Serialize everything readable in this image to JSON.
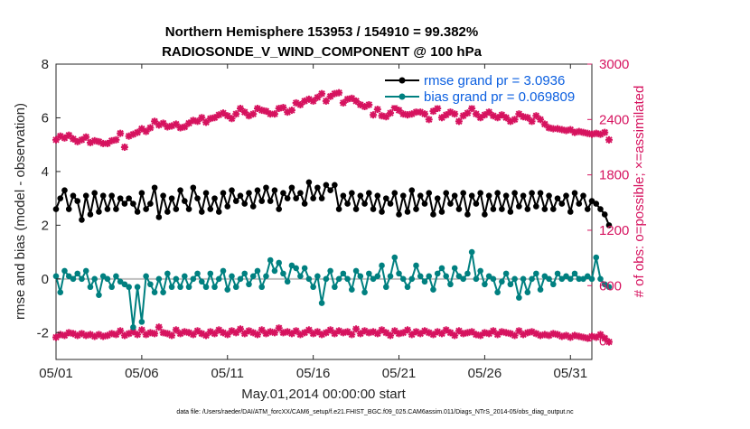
{
  "chart_data": {
    "type": "line",
    "title_lines": [
      "Northern Hemisphere 153953 / 154910 = 99.382%",
      "RADIOSONDE_V_WIND_COMPONENT @ 100 hPa"
    ],
    "xlabel": "May.01,2014 00:00:00 start",
    "ylabel_left": "rmse and bias (model - observation)",
    "ylabel_right": "# of obs: o=possible; ×=assimilated",
    "footer": "data file: /Users/raeder/DAI/ATM_forcXX/CAM6_setup/f.e21.FHIST_BGC.f09_025.CAM6assim.011/Diags_NTrS_2014-05/obs_diag_output.nc",
    "x_range": [
      0,
      31.25
    ],
    "x_ticks": [
      0,
      5,
      10,
      15,
      20,
      25,
      30
    ],
    "x_tick_labels": [
      "05/01",
      "05/06",
      "05/11",
      "05/16",
      "05/21",
      "05/26",
      "05/31"
    ],
    "y_left_range": [
      -3,
      8
    ],
    "y_left_ticks": [
      -2,
      0,
      2,
      4,
      6,
      8
    ],
    "y_left_tick_labels": [
      "-2",
      "0",
      "2",
      "4",
      "6",
      "8"
    ],
    "y_right_range": [
      -200,
      3000
    ],
    "y_right_ticks": [
      0,
      600,
      1200,
      1800,
      2400,
      3000
    ],
    "y_right_tick_labels": [
      "0",
      "600",
      "1200",
      "1800",
      "2400",
      "3000"
    ],
    "zero_line": 0,
    "legend": {
      "position": "top-right",
      "entries": [
        "rmse grand pr = 3.0936",
        "bias grand pr = 0.069809"
      ]
    },
    "colors": {
      "rmse": "#000000",
      "bias": "#008080",
      "obs": "#d6135f",
      "zero_line": "#bfbfbf",
      "legend_text": "#0b5fe0"
    },
    "x_step": 0.25,
    "series": [
      {
        "name": "rmse",
        "axis": "left",
        "values": [
          2.6,
          3.0,
          3.3,
          2.6,
          3.1,
          2.9,
          2.2,
          3.1,
          2.4,
          3.2,
          2.5,
          3.1,
          2.6,
          3.1,
          2.6,
          3.0,
          2.8,
          3.0,
          2.8,
          2.5,
          3.2,
          2.6,
          2.8,
          3.4,
          2.3,
          3.1,
          2.5,
          3.0,
          2.6,
          3.3,
          2.9,
          2.6,
          3.4,
          3.0,
          2.5,
          3.2,
          2.6,
          3.0,
          2.5,
          3.2,
          2.7,
          3.3,
          2.9,
          3.1,
          2.8,
          3.2,
          2.7,
          3.3,
          2.9,
          3.4,
          2.9,
          3.3,
          2.6,
          3.2,
          3.0,
          3.4,
          3.0,
          3.2,
          2.8,
          3.6,
          3.0,
          3.4,
          3.0,
          3.5,
          3.3,
          3.5,
          2.6,
          3.1,
          2.8,
          3.2,
          2.6,
          3.1,
          2.8,
          3.2,
          2.6,
          3.1,
          2.5,
          3.0,
          2.8,
          3.2,
          2.4,
          3.1,
          2.5,
          3.3,
          2.6,
          3.1,
          2.8,
          3.2,
          2.4,
          3.0,
          2.5,
          3.2,
          2.8,
          3.1,
          2.6,
          3.2,
          2.4,
          3.1,
          2.8,
          3.2,
          2.4,
          3.1,
          2.6,
          3.2,
          2.6,
          3.1,
          2.5,
          3.2,
          2.7,
          3.1,
          2.6,
          3.2,
          2.7,
          3.2,
          2.6,
          3.1,
          2.6,
          3.0,
          2.8,
          3.1,
          2.5,
          3.2,
          2.8,
          3.1,
          2.6,
          2.9,
          2.8,
          2.6,
          2.4,
          2.0
        ]
      },
      {
        "name": "bias",
        "axis": "left",
        "values": [
          0.1,
          -0.5,
          0.3,
          0.1,
          0.0,
          0.2,
          0.0,
          0.3,
          -0.3,
          0.0,
          -0.6,
          0.1,
          0.0,
          -0.3,
          0.1,
          -0.1,
          -0.2,
          -0.3,
          -1.8,
          -0.3,
          -1.6,
          0.1,
          -0.2,
          -0.5,
          0.0,
          -0.5,
          0.2,
          -0.3,
          0.0,
          -0.3,
          0.1,
          -0.3,
          0.0,
          0.2,
          -0.1,
          -0.3,
          0.2,
          -0.3,
          0.0,
          0.3,
          -0.4,
          0.1,
          -0.3,
          0.0,
          0.2,
          -0.2,
          0.1,
          0.3,
          -0.3,
          0.1,
          0.7,
          0.3,
          0.6,
          0.2,
          -0.1,
          0.5,
          0.4,
          0.1,
          0.4,
          0.0,
          -0.3,
          0.1,
          -0.9,
          0.0,
          0.3,
          -0.3,
          0.0,
          0.2,
          0.0,
          -0.4,
          0.3,
          0.1,
          -0.5,
          0.2,
          0.0,
          0.1,
          0.5,
          -0.3,
          0.1,
          0.8,
          0.2,
          0.0,
          -0.3,
          0.0,
          0.5,
          0.1,
          -0.1,
          0.1,
          -0.4,
          0.2,
          0.4,
          0.1,
          -0.2,
          0.4,
          0.1,
          0.0,
          0.2,
          1.0,
          0.0,
          0.3,
          -0.2,
          0.1,
          0.0,
          -0.5,
          -0.1,
          0.2,
          -0.2,
          0.0,
          -0.7,
          0.0,
          -0.5,
          0.0,
          0.2,
          -0.4,
          0.1,
          0.0,
          -0.2,
          0.2,
          0.0,
          0.1,
          0.0,
          0.2,
          0.0,
          0.0,
          0.1,
          0.0,
          0.8,
          0.0,
          -0.2,
          -0.3
        ]
      },
      {
        "name": "obs_assimilated",
        "axis": "right",
        "values": [
          2180,
          2220,
          2200,
          2230,
          2190,
          2160,
          2180,
          2210,
          2150,
          2170,
          2160,
          2140,
          2140,
          2170,
          2180,
          2250,
          2100,
          2220,
          2240,
          2260,
          2300,
          2270,
          2310,
          2380,
          2340,
          2360,
          2320,
          2330,
          2350,
          2310,
          2320,
          2360,
          2390,
          2380,
          2420,
          2370,
          2410,
          2420,
          2450,
          2470,
          2440,
          2410,
          2460,
          2520,
          2480,
          2440,
          2460,
          2520,
          2500,
          2490,
          2460,
          2460,
          2520,
          2530,
          2480,
          2500,
          2580,
          2560,
          2600,
          2620,
          2600,
          2640,
          2680,
          2600,
          2650,
          2680,
          2690,
          2580,
          2620,
          2630,
          2600,
          2560,
          2540,
          2560,
          2450,
          2510,
          2440,
          2430,
          2470,
          2530,
          2500,
          2460,
          2450,
          2460,
          2480,
          2480,
          2460,
          2400,
          2490,
          2520,
          2420,
          2450,
          2480,
          2460,
          2380,
          2440,
          2470,
          2520,
          2460,
          2420,
          2450,
          2480,
          2440,
          2420,
          2450,
          2420,
          2380,
          2400,
          2460,
          2430,
          2420,
          2380,
          2440,
          2400,
          2350,
          2310,
          2300,
          2300,
          2290,
          2280,
          2290,
          2260,
          2270,
          2260,
          2250,
          2240,
          2250,
          2240,
          2260,
          2180
        ]
      },
      {
        "name": "obs_possible",
        "axis": "right",
        "values": [
          40,
          70,
          60,
          90,
          80,
          60,
          80,
          60,
          70,
          50,
          70,
          50,
          60,
          80,
          70,
          110,
          60,
          80,
          100,
          70,
          120,
          70,
          90,
          80,
          150,
          90,
          80,
          60,
          120,
          80,
          100,
          90,
          70,
          110,
          80,
          60,
          100,
          80,
          120,
          90,
          70,
          110,
          90,
          130,
          80,
          110,
          90,
          70,
          120,
          80,
          100,
          90,
          140,
          90,
          100,
          80,
          110,
          70,
          90,
          120,
          80,
          100,
          70,
          90,
          120,
          80,
          110,
          90,
          100,
          70,
          130,
          80,
          110,
          90,
          100,
          80,
          120,
          90,
          60,
          110,
          80,
          90,
          120,
          70,
          100,
          80,
          110,
          90,
          70,
          100,
          80,
          120,
          90,
          60,
          110,
          80,
          90,
          100,
          70,
          60,
          90,
          80,
          110,
          70,
          100,
          90,
          80,
          60,
          110,
          70,
          90,
          100,
          80,
          60,
          70,
          60,
          80,
          70,
          50,
          60,
          40,
          60,
          50,
          40,
          30,
          50,
          40,
          70,
          30,
          -10
        ]
      }
    ]
  }
}
